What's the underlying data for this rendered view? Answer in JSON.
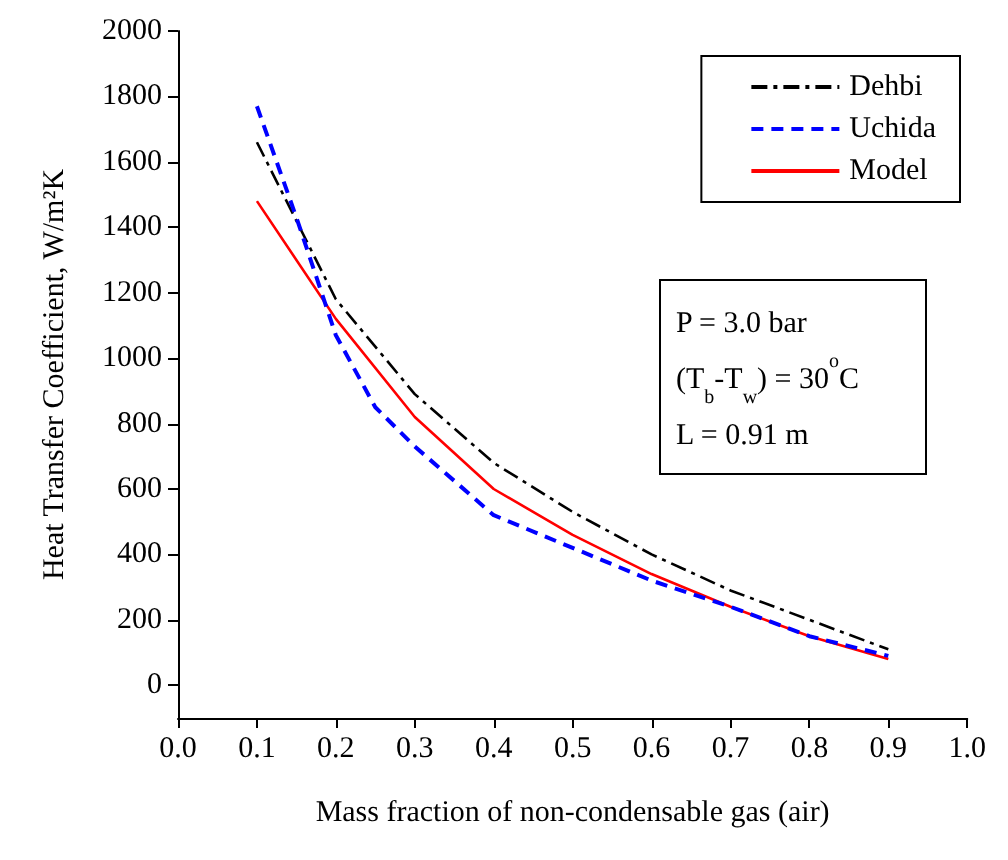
{
  "chart_data": {
    "type": "line",
    "xlabel": "Mass fraction of non-condensable gas (air)",
    "ylabel": "Heat Transfer Coefficient, W/m²K",
    "x": [
      0.1,
      0.2,
      0.3,
      0.4,
      0.5,
      0.6,
      0.7,
      0.8,
      0.9
    ],
    "series": [
      {
        "name": "Dehbi",
        "color": "#000000",
        "line_style": "dashdot",
        "values": [
          1660,
          1180,
          890,
          680,
          530,
          400,
          290,
          200,
          110
        ]
      },
      {
        "name": "Uchida",
        "color": "#0000ff",
        "line_style": "dashed",
        "x": [
          0.1,
          0.15,
          0.2,
          0.25,
          0.3,
          0.4,
          0.5,
          0.6,
          0.7,
          0.8,
          0.9
        ],
        "values": [
          1770,
          1430,
          1070,
          850,
          730,
          520,
          420,
          320,
          240,
          150,
          90
        ]
      },
      {
        "name": "Model",
        "color": "#ff0000",
        "line_style": "solid",
        "values": [
          1480,
          1120,
          820,
          600,
          460,
          340,
          240,
          150,
          80
        ]
      }
    ],
    "xlim": [
      0,
      1
    ],
    "xticks": [
      {
        "value": 0,
        "label": "0.0"
      },
      0.1,
      0.2,
      0.3,
      0.4,
      0.5,
      0.6,
      0.7,
      0.8,
      0.9,
      {
        "value": 1,
        "label": "1.0"
      }
    ],
    "ylim": [
      -100,
      2000
    ],
    "yticks": [
      0,
      200,
      400,
      600,
      800,
      1000,
      1200,
      1400,
      1600,
      1800,
      2000
    ],
    "grid": false,
    "legend": "top right",
    "marker": "none",
    "annotations": [
      "P = 3.0 bar",
      "(T$_{b}$-T$_{w}$) = 30$^{o}$C",
      "L = 0.91 m"
    ]
  }
}
